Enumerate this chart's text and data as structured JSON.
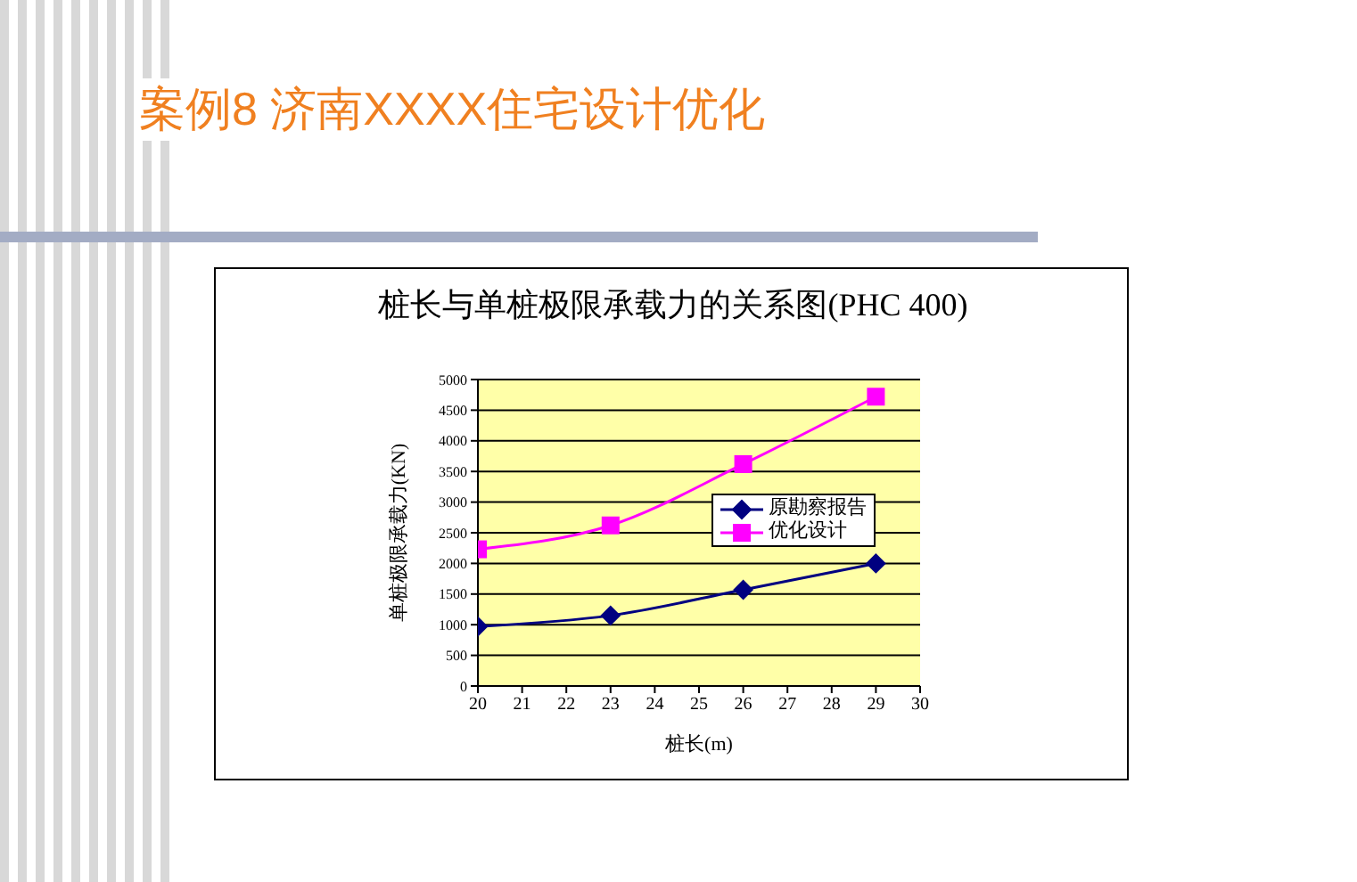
{
  "chart_data": {
    "type": "line",
    "title": "桩长与单桩极限承载力的关系图(PHC 400)",
    "annotations": [
      "案例8 济南XXXX住宅设计优化"
    ],
    "xlabel": "桩长(m)",
    "ylabel": "单桩极限承载力(KN)",
    "x": [
      20,
      23,
      26,
      29
    ],
    "series": [
      {
        "name": "原勘察报告",
        "color": "#000080",
        "marker": "diamond",
        "values": [
          970,
          1150,
          1570,
          2000
        ]
      },
      {
        "name": "优化设计",
        "color": "#ff00ff",
        "marker": "square",
        "values": [
          2230,
          2620,
          3620,
          4720
        ]
      }
    ],
    "xlim": [
      20,
      30
    ],
    "xticks": [
      20,
      21,
      22,
      23,
      24,
      25,
      26,
      27,
      28,
      29,
      30
    ],
    "ylim": [
      0,
      5000
    ],
    "yticks": [
      0,
      500,
      1000,
      1500,
      2000,
      2500,
      3000,
      3500,
      4000,
      4500,
      5000
    ],
    "grid": "y",
    "legend": "right"
  }
}
